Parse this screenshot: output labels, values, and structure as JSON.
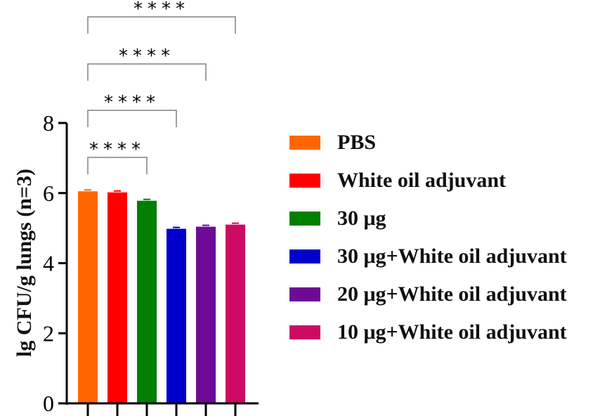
{
  "chart_data": {
    "type": "bar",
    "title": "",
    "xlabel": "",
    "ylabel": "lg CFU/g lungs (n=3)",
    "ylim": [
      0,
      8
    ],
    "yticks": [
      "0",
      "2",
      "4",
      "6",
      "8"
    ],
    "grid": false,
    "legend_position": "right",
    "categories": [
      "PBS",
      "White oil adjuvant",
      "30 μg",
      "30 μg+White oil adjuvant",
      "20 μg+White oil adjuvant",
      "10 μg+White oil adjuvant"
    ],
    "values": [
      6.05,
      6.02,
      5.78,
      4.98,
      5.04,
      5.1
    ],
    "colors": [
      "#FF6600",
      "#FF0000",
      "#007F00",
      "#0000CC",
      "#6E0A96",
      "#CC0A64"
    ],
    "annotations": [
      {
        "from": "PBS",
        "to": "30 μg",
        "label": "****"
      },
      {
        "from": "PBS",
        "to": "30 μg+White oil adjuvant",
        "label": "****"
      },
      {
        "from": "PBS",
        "to": "20 μg+White oil adjuvant",
        "label": "****"
      },
      {
        "from": "PBS",
        "to": "10 μg+White oil adjuvant",
        "label": "****"
      }
    ]
  }
}
